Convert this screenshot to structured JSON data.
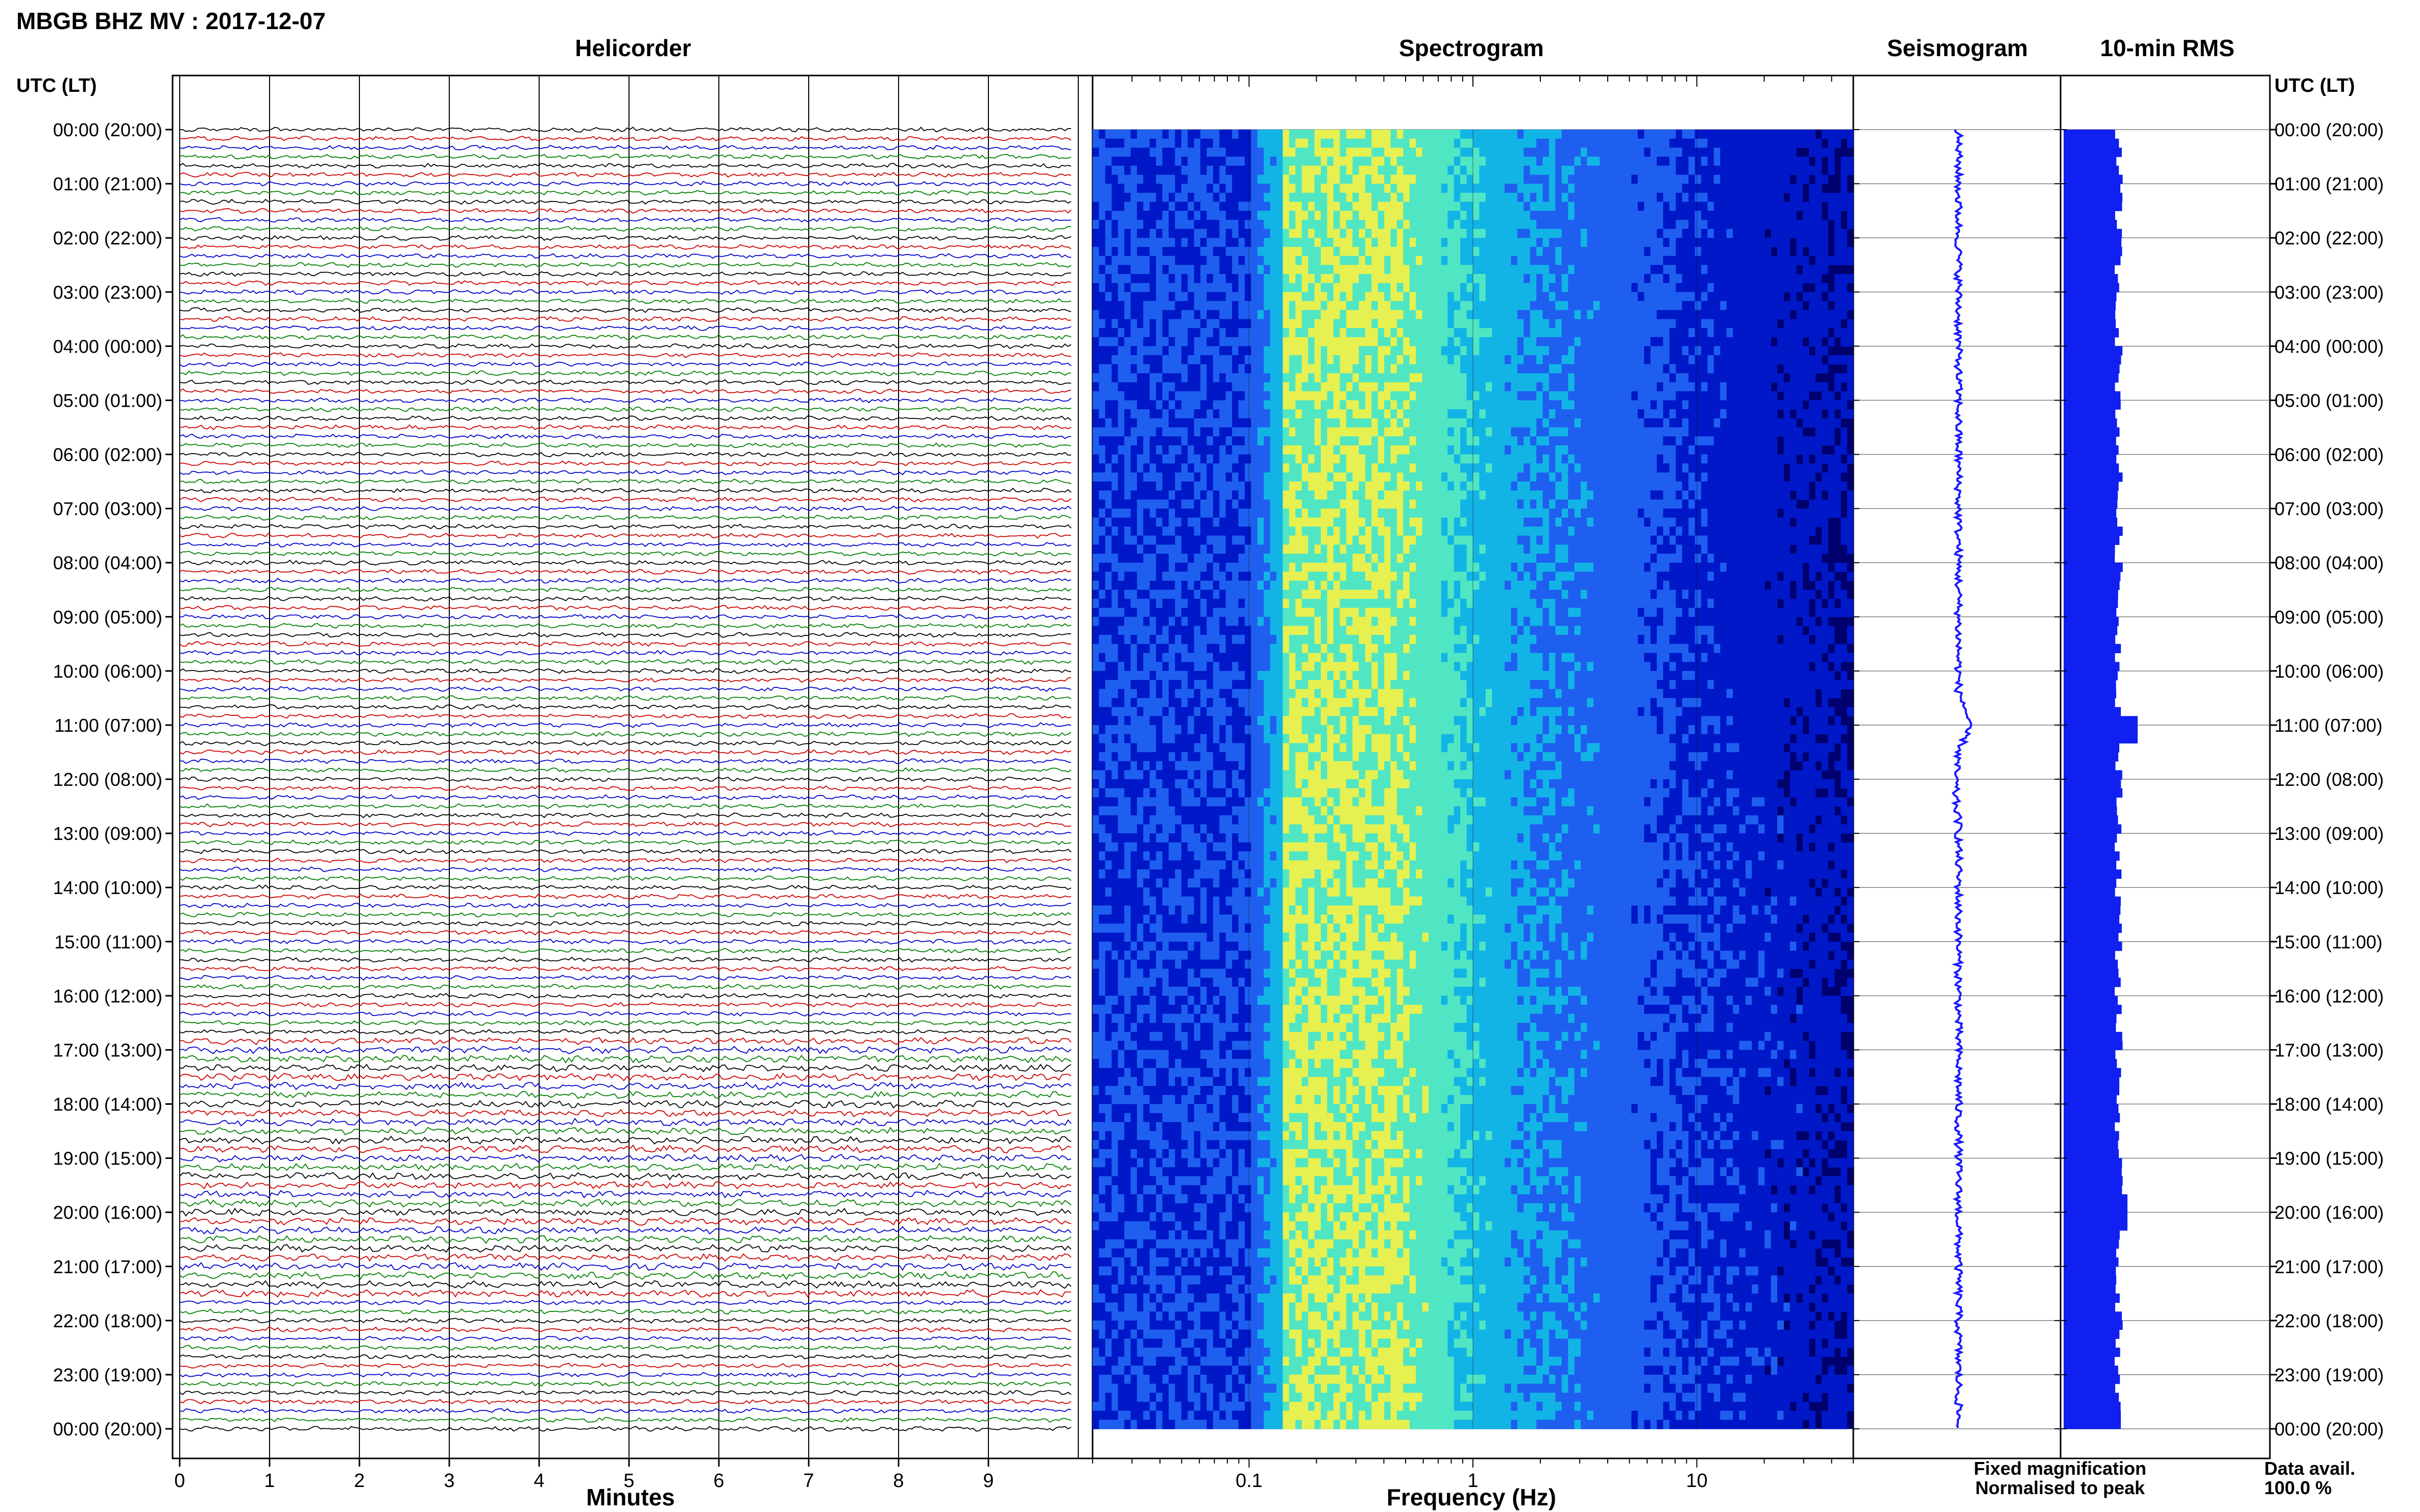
{
  "figure": {
    "title": "MBGB BHZ MV : 2017-12-07",
    "time_axis_label": "UTC (LT)",
    "data_availability_label": "Data avail.",
    "data_availability_value": "100.0 %",
    "legend": {
      "fixed": "Fixed magnification",
      "normalised": "Normalised to peak",
      "fixed_color": "#1010e0",
      "normalised_color": "#e01010"
    }
  },
  "chart_data": [
    {
      "type": "line",
      "panel": "helicorder",
      "title": "Helicorder",
      "xlabel": "Minutes",
      "ylabel": "UTC (LT)",
      "xlim": [
        0,
        10
      ],
      "x_ticks": [
        "0",
        "1",
        "2",
        "3",
        "4",
        "5",
        "6",
        "7",
        "8",
        "9"
      ],
      "time_ticks": [
        "00:00 (20:00)",
        "01:00 (21:00)",
        "02:00 (22:00)",
        "03:00 (23:00)",
        "04:00 (00:00)",
        "05:00 (01:00)",
        "06:00 (02:00)",
        "07:00 (03:00)",
        "08:00 (04:00)",
        "09:00 (05:00)",
        "10:00 (06:00)",
        "11:00 (07:00)",
        "12:00 (08:00)",
        "13:00 (09:00)",
        "14:00 (10:00)",
        "15:00 (11:00)",
        "16:00 (12:00)",
        "17:00 (13:00)",
        "18:00 (14:00)",
        "19:00 (15:00)",
        "20:00 (16:00)",
        "21:00 (17:00)",
        "22:00 (18:00)",
        "23:00 (19:00)",
        "00:00 (20:00)"
      ],
      "trace_colors": [
        "#000000",
        "#d00000",
        "#0000d0",
        "#008000"
      ],
      "trace_count": 144
    },
    {
      "type": "heatmap",
      "panel": "spectrogram",
      "title": "Spectrogram",
      "xlabel": "Frequency (Hz)",
      "x_scale": "log",
      "xlim": [
        0.02,
        50
      ],
      "x_ticks": [
        "0.1",
        "1",
        "10"
      ],
      "colormap": [
        "#00006e",
        "#0018c8",
        "#1f5ff0",
        "#12b4e6",
        "#50e6c3",
        "#e6f050"
      ]
    },
    {
      "type": "line",
      "panel": "seismogram",
      "title": "Seismogram"
    },
    {
      "type": "bar",
      "panel": "rms",
      "title": "10-min RMS",
      "bar_color": "#1020f0"
    }
  ]
}
